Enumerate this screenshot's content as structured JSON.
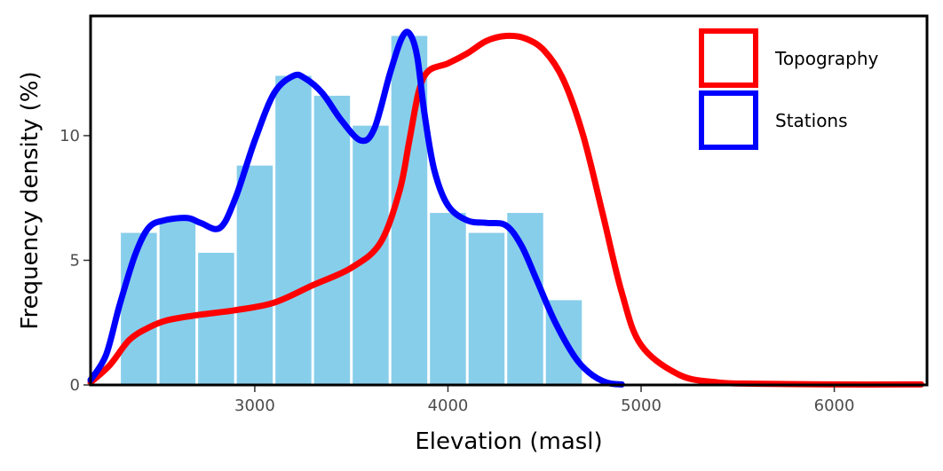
{
  "chart_data": {
    "type": "bar",
    "title": "",
    "xlabel": "Elevation (masl)",
    "ylabel": "Frequency density (%)",
    "xlim": [
      2150,
      6480
    ],
    "ylim": [
      0,
      14.8
    ],
    "xticks": [
      3000,
      4000,
      5000,
      6000
    ],
    "yticks": [
      0,
      5,
      10
    ],
    "xtick_labels": [
      "3000",
      "4000",
      "5000",
      "6000"
    ],
    "ytick_labels": [
      "0",
      "5",
      "10"
    ],
    "grid": false,
    "legend_position": "top-right",
    "bar_color": "#87ceeb",
    "histogram": {
      "bin_width": 200,
      "bin_starts": [
        2300,
        2500,
        2700,
        2900,
        3100,
        3300,
        3500,
        3700,
        3900,
        4100,
        4300,
        4500
      ],
      "values": [
        6.1,
        6.6,
        5.3,
        8.8,
        12.4,
        11.6,
        10.4,
        14.0,
        6.9,
        6.1,
        6.9,
        3.4
      ]
    },
    "series": [
      {
        "name": "Topography",
        "color": "#ff0000",
        "type": "line",
        "x": [
          2150,
          2250,
          2350,
          2450,
          2550,
          2700,
          2900,
          3100,
          3300,
          3500,
          3650,
          3750,
          3800,
          3850,
          3900,
          4000,
          4100,
          4200,
          4300,
          4400,
          4500,
          4600,
          4700,
          4800,
          4900,
          5000,
          5200,
          5400,
          5600,
          6000,
          6450
        ],
        "y": [
          0.1,
          0.8,
          1.8,
          2.3,
          2.6,
          2.8,
          3.0,
          3.3,
          4.0,
          4.7,
          5.7,
          7.8,
          9.8,
          11.8,
          12.6,
          12.9,
          13.3,
          13.8,
          14.0,
          13.9,
          13.4,
          12.2,
          10.0,
          6.9,
          3.7,
          1.6,
          0.4,
          0.1,
          0.05,
          0.02,
          0.02
        ]
      },
      {
        "name": "Stations",
        "color": "#0000ff",
        "type": "line",
        "x": [
          2150,
          2230,
          2300,
          2380,
          2450,
          2530,
          2650,
          2720,
          2820,
          2900,
          3000,
          3100,
          3200,
          3260,
          3350,
          3450,
          3550,
          3620,
          3700,
          3760,
          3800,
          3840,
          3880,
          3930,
          4000,
          4100,
          4200,
          4300,
          4380,
          4460,
          4550,
          4650,
          4730,
          4820,
          4900
        ],
        "y": [
          0.2,
          1.2,
          3.2,
          5.2,
          6.3,
          6.6,
          6.7,
          6.5,
          6.3,
          7.5,
          9.8,
          11.7,
          12.4,
          12.3,
          11.7,
          10.6,
          9.8,
          10.3,
          12.5,
          13.9,
          14.1,
          13.2,
          10.8,
          8.6,
          7.2,
          6.6,
          6.5,
          6.4,
          5.6,
          4.2,
          2.6,
          1.2,
          0.5,
          0.1,
          0.02
        ]
      }
    ],
    "legend": [
      {
        "label": "Topography",
        "color": "#ff0000"
      },
      {
        "label": "Stations",
        "color": "#0000ff"
      }
    ]
  }
}
